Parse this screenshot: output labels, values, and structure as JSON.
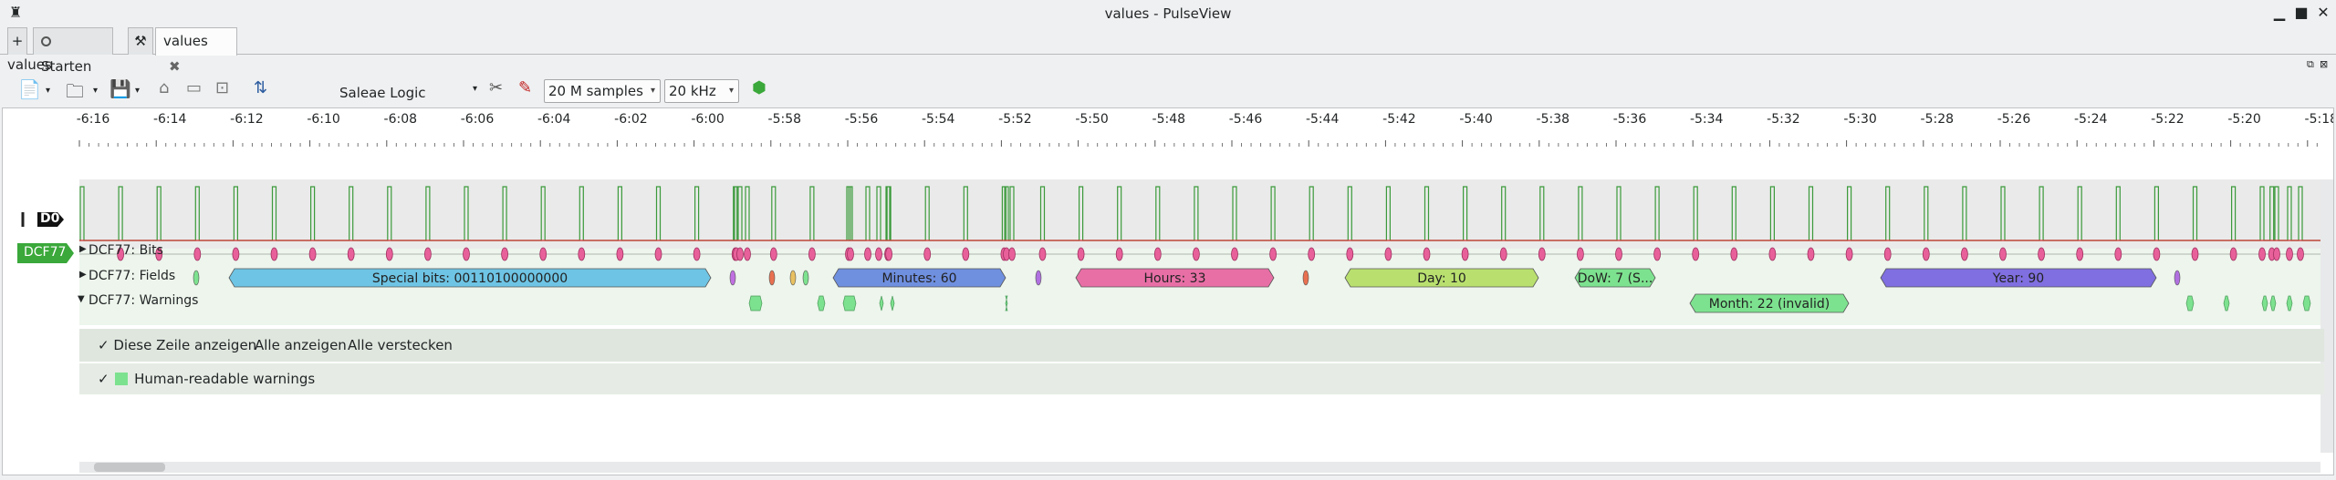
{
  "window": {
    "title": "values - PulseView"
  },
  "tabs": [
    {
      "label": "Starten"
    },
    {
      "label": "values"
    }
  ],
  "view": {
    "label": "values"
  },
  "toolbar": {
    "device": "Saleae Logic",
    "samples": "20 M samples",
    "rate": "20 kHz"
  },
  "ruler": {
    "labels": [
      "-6:16",
      "-6:14",
      "-6:12",
      "-6:10",
      "-6:08",
      "-6:06",
      "-6:04",
      "-6:02",
      "-6:00",
      "-5:58",
      "-5:56",
      "-5:54",
      "-5:52",
      "-5:50",
      "-5:48",
      "-5:46",
      "-5:44",
      "-5:42",
      "-5:40",
      "-5:38",
      "-5:36",
      "-5:34",
      "-5:32",
      "-5:30",
      "-5:28",
      "-5:26",
      "-5:24",
      "-5:22",
      "-5:20",
      "-5:18"
    ]
  },
  "channel": {
    "label": "D0"
  },
  "decoder": {
    "badge": "DCF77",
    "rows": {
      "bits": "DCF77: Bits",
      "fields": "DCF77: Fields",
      "warnings": "DCF77: Warnings"
    },
    "fields": [
      {
        "label": "Special bits: 00110100000000",
        "color": "#6ec4e4"
      },
      {
        "label": "Minutes: 60",
        "color": "#6f8fdf"
      },
      {
        "label": "Hours: 33",
        "color": "#e86fa6"
      },
      {
        "label": "Day: 10",
        "color": "#b9e06f"
      },
      {
        "label": "DoW: 7 (S...",
        "color": "#7de28f"
      },
      {
        "label": "Month: 22 (invalid)",
        "color": "#7de28f"
      },
      {
        "label": "Year: 90",
        "color": "#7f6fe0"
      }
    ],
    "row_options": {
      "show_row": "Diese Zeile anzeigen",
      "show_all": "Alle anzeigen",
      "hide_all": "Alle verstecken",
      "warning_class": "Human-readable warnings"
    }
  },
  "colors": {
    "bits": "#e8609a",
    "warning": "#7de28f",
    "signal_high": "#3b9a3b",
    "signal_low": "#d03030",
    "accent": "#3aa83a"
  }
}
